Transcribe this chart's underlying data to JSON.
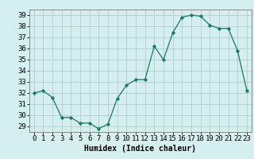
{
  "x": [
    0,
    1,
    2,
    3,
    4,
    5,
    6,
    7,
    8,
    9,
    10,
    11,
    12,
    13,
    14,
    15,
    16,
    17,
    18,
    19,
    20,
    21,
    22,
    23
  ],
  "y": [
    32,
    32.2,
    31.6,
    29.8,
    29.8,
    29.3,
    29.3,
    28.8,
    29.2,
    31.5,
    32.7,
    33.2,
    33.2,
    36.2,
    35.0,
    37.4,
    38.8,
    39.0,
    38.9,
    38.1,
    37.8,
    37.8,
    35.8,
    32.2
  ],
  "xlabel": "Humidex (Indice chaleur)",
  "ylim": [
    28.5,
    39.5
  ],
  "xlim": [
    -0.5,
    23.5
  ],
  "yticks": [
    29,
    30,
    31,
    32,
    33,
    34,
    35,
    36,
    37,
    38,
    39
  ],
  "xticks": [
    0,
    1,
    2,
    3,
    4,
    5,
    6,
    7,
    8,
    9,
    10,
    11,
    12,
    13,
    14,
    15,
    16,
    17,
    18,
    19,
    20,
    21,
    22,
    23
  ],
  "line_color": "#1a7a5e",
  "marker_color": "#1a7a5e",
  "bg_color": "#d5eeee",
  "grid_color": "#b0cccc",
  "label_fontsize": 7,
  "tick_fontsize": 6.5
}
